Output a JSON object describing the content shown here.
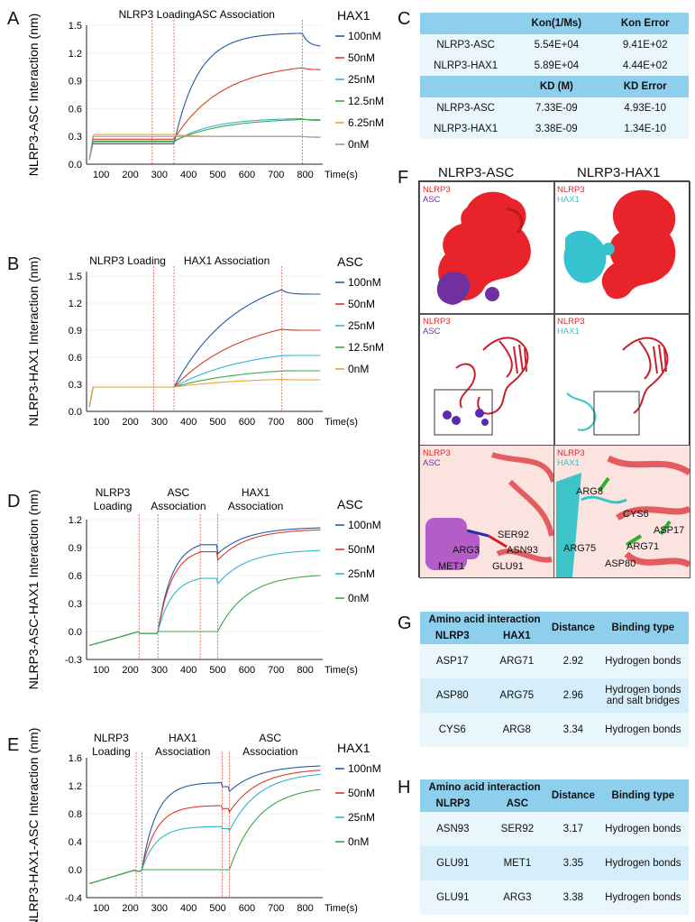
{
  "panels": [
    "A",
    "B",
    "C",
    "D",
    "E",
    "F",
    "G",
    "H"
  ],
  "charts": [
    {
      "id": "A",
      "type": "line",
      "ylabel": "NLRP3-ASC Interaction (nm)",
      "xlabel": "Time(s)",
      "xticks": [
        100,
        200,
        300,
        400,
        500,
        600,
        700,
        800
      ],
      "yticks": [
        "0.0",
        "0.3",
        "0.6",
        "0.9",
        "1.2",
        "1.5"
      ],
      "xlim": [
        50,
        860
      ],
      "ylim": [
        0,
        1.5
      ],
      "phase_labels": [
        "NLRP3 Loading",
        "ASC Association"
      ],
      "phase_lines": [
        275,
        350,
        790
      ],
      "legend_title": "HAX1",
      "series": [
        {
          "name": "100nM",
          "color": "#2458a6",
          "base": 0.22,
          "plateau": 1.42,
          "k": 0.012,
          "dis": 1.27
        },
        {
          "name": "50nM",
          "color": "#d83a2a",
          "base": 0.27,
          "plateau": 1.1,
          "k": 0.006,
          "dis": 1.02
        },
        {
          "name": "25nM",
          "color": "#33b4cf",
          "base": 0.24,
          "plateau": 0.5,
          "k": 0.008,
          "dis": 0.47
        },
        {
          "name": "12.5nM",
          "color": "#3aa64a",
          "base": 0.25,
          "plateau": 0.5,
          "k": 0.006,
          "dis": 0.48
        },
        {
          "name": "6.25nM",
          "color": "#e8a33a",
          "base": 0.32,
          "plateau": 0.3,
          "k": 0.02,
          "dis": 0.29
        },
        {
          "name": "0nM",
          "color": "#999999",
          "base": 0.3,
          "plateau": 0.3,
          "k": 0.02,
          "dis": 0.29
        }
      ]
    },
    {
      "id": "B",
      "type": "line",
      "ylabel": "NLRP3-HAX1 Interaction (nm)",
      "xlabel": "Time(s)",
      "xticks": [
        100,
        200,
        300,
        400,
        500,
        600,
        700,
        800
      ],
      "yticks": [
        "0.0",
        "0.3",
        "0.6",
        "0.9",
        "1.2",
        "1.5"
      ],
      "xlim": [
        50,
        860
      ],
      "ylim": [
        0,
        1.55
      ],
      "phase_labels": [
        "NLRP3 Loading",
        "HAX1 Association"
      ],
      "phase_lines": [
        280,
        350,
        720
      ],
      "legend_title": "ASC",
      "series": [
        {
          "name": "100nM",
          "color": "#2458a6",
          "base": 0.27,
          "plateau": 1.6,
          "k": 0.0045,
          "dis": 1.3
        },
        {
          "name": "50nM",
          "color": "#d83a2a",
          "base": 0.27,
          "plateau": 1.1,
          "k": 0.004,
          "dis": 0.9
        },
        {
          "name": "25nM",
          "color": "#33b4cf",
          "base": 0.27,
          "plateau": 0.72,
          "k": 0.004,
          "dis": 0.62
        },
        {
          "name": "12.5nM",
          "color": "#3aa64a",
          "base": 0.27,
          "plateau": 0.5,
          "k": 0.004,
          "dis": 0.45
        },
        {
          "name": "0nM",
          "color": "#e8a33a",
          "base": 0.27,
          "plateau": 0.38,
          "k": 0.004,
          "dis": 0.35
        }
      ]
    },
    {
      "id": "D",
      "type": "line",
      "ylabel": "NLRP3-ASC-HAX1 Interaction (nm)",
      "xlabel": "Time(s)",
      "xticks": [
        100,
        200,
        300,
        400,
        500,
        600,
        700,
        800
      ],
      "yticks": [
        "-0.3",
        "0.0",
        "0.3",
        "0.6",
        "0.9",
        "1.2"
      ],
      "xlim": [
        50,
        860
      ],
      "ylim": [
        -0.3,
        1.2
      ],
      "phase_labels": [
        "NLRP3 Loading",
        "ASC Association",
        "HAX1 Association"
      ],
      "phase_lines": [
        230,
        295,
        440,
        500
      ],
      "legend_title": "ASC",
      "series": [
        {
          "name": "100nM",
          "color": "#2458a6",
          "s1": 0.98,
          "s2": 1.12
        },
        {
          "name": "50nM",
          "color": "#d83a2a",
          "s1": 0.9,
          "s2": 1.1
        },
        {
          "name": "25nM",
          "color": "#33b4cf",
          "s1": 0.6,
          "s2": 0.88
        },
        {
          "name": "0nM",
          "color": "#3aa64a",
          "s1": 0.0,
          "s2": 0.62
        }
      ]
    },
    {
      "id": "E",
      "type": "line",
      "ylabel": "NLRP3-HAX1-ASC Interaction (nm)",
      "xlabel": "Time(s)",
      "xticks": [
        100,
        200,
        300,
        400,
        500,
        600,
        700,
        800
      ],
      "yticks": [
        "-0.4",
        "0.0",
        "0.4",
        "0.8",
        "1.2",
        "1.6"
      ],
      "xlim": [
        50,
        860
      ],
      "ylim": [
        -0.4,
        1.6
      ],
      "phase_labels": [
        "NLRP3 Loading",
        "HAX1 Association",
        "ASC Association"
      ],
      "phase_lines": [
        220,
        240,
        515,
        540
      ],
      "legend_title": "HAX1",
      "series": [
        {
          "name": "100nM",
          "color": "#2458a6",
          "s1": 1.25,
          "s2": 1.5
        },
        {
          "name": "50nM",
          "color": "#d83a2a",
          "s1": 0.92,
          "s2": 1.45
        },
        {
          "name": "25nM",
          "color": "#33b4cf",
          "s1": 0.62,
          "s2": 1.4
        },
        {
          "name": "0nM",
          "color": "#3aa64a",
          "s1": 0.0,
          "s2": 1.2
        }
      ]
    }
  ],
  "kinetics": {
    "header1": [
      "",
      "Kon(1/Ms)",
      "Kon Error"
    ],
    "rows1": [
      [
        "NLRP3-ASC",
        "5.54E+04",
        "9.41E+02"
      ],
      [
        "NLRP3-HAX1",
        "5.89E+04",
        "4.44E+02"
      ]
    ],
    "header2": [
      "",
      "KD (M)",
      "KD Error"
    ],
    "rows2": [
      [
        "NLRP3-ASC",
        "7.33E-09",
        "4.93E-10"
      ],
      [
        "NLRP3-HAX1",
        "3.38E-09",
        "1.34E-10"
      ]
    ]
  },
  "structures": {
    "titles": [
      "NLRP3-ASC",
      "NLRP3-HAX1"
    ],
    "left_labels": [
      "NLRP3",
      "ASC"
    ],
    "right_labels": [
      "NLRP3",
      "HAX1"
    ],
    "left_residues": [
      "SER92",
      "ARG3",
      "ASN93",
      "MET1",
      "GLU91"
    ],
    "right_residues": [
      "ARG8",
      "CYS6",
      "ASP17",
      "ARG75",
      "ARG71",
      "ASP80"
    ],
    "colors": {
      "nlrp3": "#e8242a",
      "asc": "#7030a0",
      "hax1": "#36c2cf"
    }
  },
  "table_g": {
    "group_header": "Amino acid interaction",
    "cols": [
      "NLRP3",
      "HAX1",
      "Distance",
      "Binding type"
    ],
    "rows": [
      [
        "ASP17",
        "ARG71",
        "2.92",
        "Hydrogen bonds"
      ],
      [
        "ASP80",
        "ARG75",
        "2.96",
        "Hydrogen bonds and salt bridges"
      ],
      [
        "CYS6",
        "ARG8",
        "3.34",
        "Hydrogen bonds"
      ]
    ]
  },
  "table_h": {
    "group_header": "Amino acid interaction",
    "cols": [
      "NLRP3",
      "ASC",
      "Distance",
      "Binding type"
    ],
    "rows": [
      [
        "ASN93",
        "SER92",
        "3.17",
        "Hydrogen bonds"
      ],
      [
        "GLU91",
        "MET1",
        "3.35",
        "Hydrogen bonds"
      ],
      [
        "GLU91",
        "ARG3",
        "3.38",
        "Hydrogen bonds"
      ]
    ]
  }
}
